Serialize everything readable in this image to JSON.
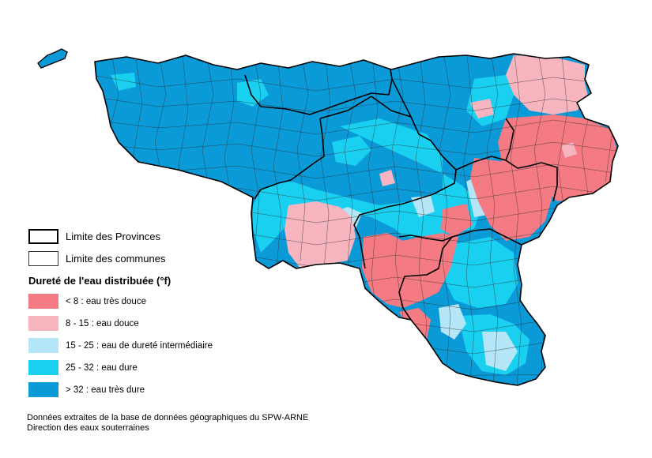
{
  "legend": {
    "province_label": "Limite des Provinces",
    "commune_label": "Limite des communes",
    "title": "Dureté de l'eau distribuée (°f)",
    "classes": [
      {
        "label": "< 8 : eau très douce",
        "color": "#f47b83"
      },
      {
        "label": "8 - 15 : eau douce",
        "color": "#f7b5c0"
      },
      {
        "label": "15 - 25 : eau de dureté intermédiaire",
        "color": "#b5e6f7"
      },
      {
        "label": "25 - 32 : eau dure",
        "color": "#1ad0f0"
      },
      {
        "label": "> 32 : eau très dure",
        "color": "#0b9ad8"
      }
    ]
  },
  "source": {
    "line1": "Données extraites de la base de données géographiques du SPW-ARNE",
    "line2": "Direction des eaux souterraines"
  }
}
